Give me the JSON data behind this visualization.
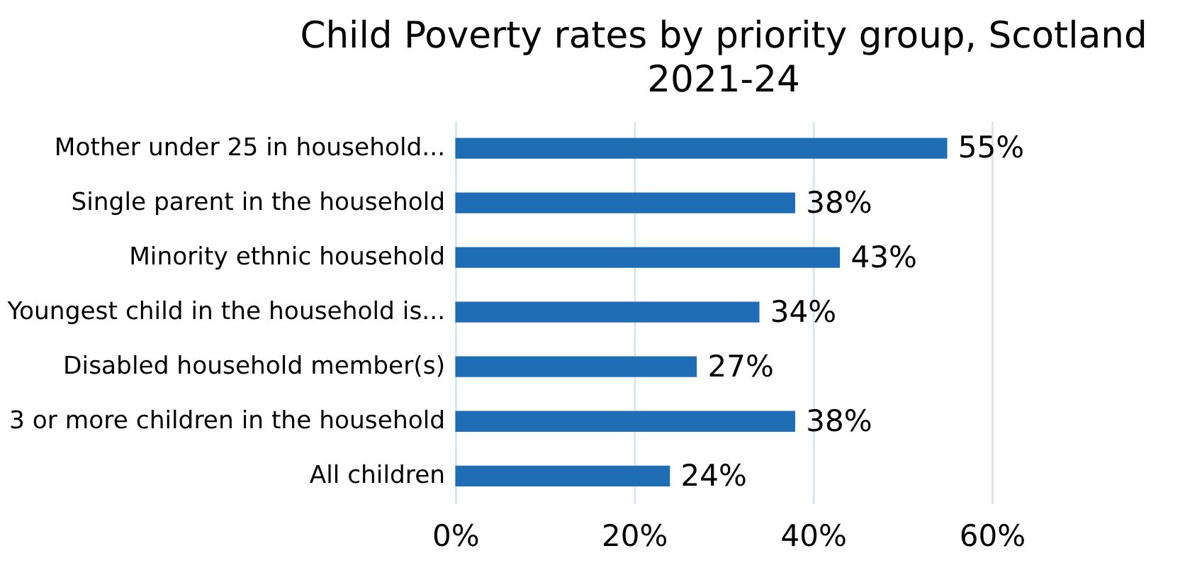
{
  "chart_data": {
    "type": "bar",
    "orientation": "horizontal",
    "title": "Child Poverty rates by priority group, Scotland 2021-24",
    "categories": [
      "Mother under 25 in household...",
      "Single parent in the household",
      "Minority ethnic household",
      "Youngest child in the household is...",
      "Disabled household member(s)",
      "3 or more children in the household",
      "All children"
    ],
    "values": [
      55,
      38,
      43,
      34,
      27,
      38,
      24
    ],
    "value_labels": [
      "55%",
      "38%",
      "43%",
      "34%",
      "27%",
      "38%",
      "24%"
    ],
    "color": "#1f6db5",
    "xlim": [
      0,
      60
    ],
    "xticks": [
      {
        "value": 0,
        "label": "0%"
      },
      {
        "value": 20,
        "label": "20%"
      },
      {
        "value": 40,
        "label": "40%"
      },
      {
        "value": 60,
        "label": "60%"
      }
    ],
    "grid": "x"
  }
}
